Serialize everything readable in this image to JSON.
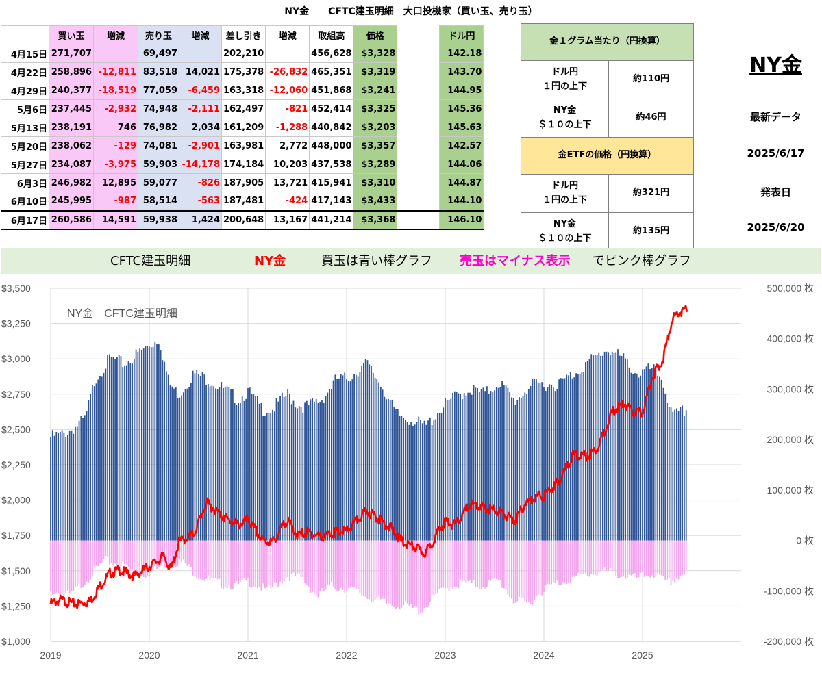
{
  "title": {
    "left": "NY金",
    "middle": "CFTC建玉明細",
    "right": "大口投機家（買い玉、売り玉）"
  },
  "table": {
    "headers": [
      "",
      "買い玉",
      "増減",
      "売り玉",
      "増減",
      "差し引き",
      "増減",
      "取組高",
      "価格",
      "",
      "ドル円"
    ],
    "rows": [
      [
        "4月15日",
        "271,707",
        "",
        "69,497",
        "",
        "202,210",
        "",
        "456,628",
        "$3,328",
        "",
        "142.18"
      ],
      [
        "4月22日",
        "258,896",
        "-12,811",
        "83,518",
        "14,021",
        "175,378",
        "-26,832",
        "465,351",
        "$3,319",
        "",
        "143.70"
      ],
      [
        "4月29日",
        "240,377",
        "-18,519",
        "77,059",
        "-6,459",
        "163,318",
        "-12,060",
        "451,868",
        "$3,241",
        "",
        "144.95"
      ],
      [
        "5月6日",
        "237,445",
        "-2,932",
        "74,948",
        "-2,111",
        "162,497",
        "-821",
        "452,414",
        "$3,325",
        "",
        "145.36"
      ],
      [
        "5月13日",
        "238,191",
        "746",
        "76,982",
        "2,034",
        "161,209",
        "-1,288",
        "440,842",
        "$3,203",
        "",
        "145.63"
      ],
      [
        "5月20日",
        "238,062",
        "-129",
        "74,081",
        "-2,901",
        "163,981",
        "2,772",
        "448,000",
        "$3,357",
        "",
        "142.57"
      ],
      [
        "5月27日",
        "234,087",
        "-3,975",
        "59,903",
        "-14,178",
        "174,184",
        "10,203",
        "437,538",
        "$3,289",
        "",
        "144.06"
      ],
      [
        "6月3日",
        "246,982",
        "12,895",
        "59,077",
        "-826",
        "187,905",
        "13,721",
        "415,941",
        "$3,310",
        "",
        "144.87"
      ],
      [
        "6月10日",
        "245,995",
        "-987",
        "58,514",
        "-563",
        "187,481",
        "-424",
        "417,143",
        "$3,433",
        "",
        "144.10"
      ],
      [
        "6月17日",
        "260,586",
        "14,591",
        "59,938",
        "1,424",
        "200,648",
        "13,167",
        "441,214",
        "$3,368",
        "",
        "146.10"
      ]
    ]
  },
  "info_box": {
    "gram_header": "金１グラム当たり（円換算）",
    "etf_header": "金ETFの価格（円換算）",
    "rows": [
      {
        "label": "ドル円\n１円の上下",
        "value": "約110円"
      },
      {
        "label": "NY金\n＄１０の上下",
        "value": "約46円"
      },
      {
        "label": "ドル円\n１円の上下",
        "value": "約321円"
      },
      {
        "label": "NY金\n＄１０の上下",
        "value": "約135円"
      }
    ]
  },
  "right_info": {
    "big_title": "NY金",
    "latest_label": "最新データ",
    "latest_date": "2025/6/17",
    "release_label": "発表日",
    "release_date": "2025/6/20"
  },
  "banner": {
    "part1": "CFTC建玉明細",
    "part2": "NY金",
    "part3": "買玉は青い棒グラフ",
    "part4": "売玉はマイナス表示",
    "part5": "でピンク棒グラフ"
  },
  "colors": {
    "long_bar": "#2f5597",
    "short_bar": "#f3a6ee",
    "price_line": "#ff0000",
    "grid": "#d9d9d9",
    "long_cell": "#f9c8f6",
    "short_cell": "#d9e1f2",
    "price_cell": "#a9d08e"
  },
  "chart_data": {
    "type": "bar+line",
    "title": "NY金　CFTC建玉明細",
    "x_ticks": [
      "2019",
      "2020",
      "2021",
      "2022",
      "2023",
      "2024",
      "2025"
    ],
    "x_range": [
      2019.0,
      2026.0
    ],
    "y_left": {
      "range": [
        1000,
        3500
      ],
      "ticks": [
        "$1,000",
        "$1,250",
        "$1,500",
        "$1,750",
        "$2,000",
        "$2,250",
        "$2,500",
        "$2,750",
        "$3,000",
        "$3,250",
        "$3,500"
      ]
    },
    "y_right": {
      "range": [
        -200000,
        500000
      ],
      "ticks": [
        "-200,000 枚",
        "-100,000 枚",
        "0 枚",
        "100,000 枚",
        "200,000 枚",
        "300,000 枚",
        "400,000 枚",
        "500,000 枚"
      ]
    },
    "long_anchors": [
      [
        2019.0,
        205000
      ],
      [
        2019.12,
        210000
      ],
      [
        2019.25,
        225000
      ],
      [
        2019.35,
        240000
      ],
      [
        2019.45,
        320000
      ],
      [
        2019.6,
        360000
      ],
      [
        2019.75,
        350000
      ],
      [
        2019.95,
        380000
      ],
      [
        2020.1,
        400000
      ],
      [
        2020.2,
        310000
      ],
      [
        2020.3,
        290000
      ],
      [
        2020.45,
        330000
      ],
      [
        2020.6,
        320000
      ],
      [
        2020.75,
        300000
      ],
      [
        2020.9,
        280000
      ],
      [
        2021.0,
        295000
      ],
      [
        2021.15,
        260000
      ],
      [
        2021.25,
        260000
      ],
      [
        2021.4,
        290000
      ],
      [
        2021.5,
        270000
      ],
      [
        2021.6,
        265000
      ],
      [
        2021.75,
        280000
      ],
      [
        2021.9,
        320000
      ],
      [
        2022.0,
        320000
      ],
      [
        2022.2,
        350000
      ],
      [
        2022.35,
        310000
      ],
      [
        2022.5,
        250000
      ],
      [
        2022.65,
        240000
      ],
      [
        2022.8,
        225000
      ],
      [
        2022.95,
        260000
      ],
      [
        2023.1,
        285000
      ],
      [
        2023.25,
        300000
      ],
      [
        2023.4,
        290000
      ],
      [
        2023.55,
        315000
      ],
      [
        2023.7,
        275000
      ],
      [
        2023.85,
        305000
      ],
      [
        2024.0,
        310000
      ],
      [
        2024.15,
        310000
      ],
      [
        2024.3,
        330000
      ],
      [
        2024.5,
        360000
      ],
      [
        2024.65,
        380000
      ],
      [
        2024.8,
        360000
      ],
      [
        2024.95,
        330000
      ],
      [
        2025.1,
        340000
      ],
      [
        2025.2,
        320000
      ],
      [
        2025.3,
        245000
      ],
      [
        2025.46,
        260586
      ]
    ],
    "short_anchors": [
      [
        2019.0,
        -100000
      ],
      [
        2019.2,
        -110000
      ],
      [
        2019.4,
        -70000
      ],
      [
        2019.55,
        -40000
      ],
      [
        2019.75,
        -50000
      ],
      [
        2019.9,
        -70000
      ],
      [
        2020.05,
        -60000
      ],
      [
        2020.2,
        -40000
      ],
      [
        2020.35,
        -45000
      ],
      [
        2020.5,
        -70000
      ],
      [
        2020.7,
        -85000
      ],
      [
        2020.9,
        -90000
      ],
      [
        2021.0,
        -80000
      ],
      [
        2021.2,
        -100000
      ],
      [
        2021.4,
        -70000
      ],
      [
        2021.55,
        -75000
      ],
      [
        2021.7,
        -110000
      ],
      [
        2021.85,
        -90000
      ],
      [
        2022.0,
        -95000
      ],
      [
        2022.2,
        -110000
      ],
      [
        2022.4,
        -125000
      ],
      [
        2022.6,
        -130000
      ],
      [
        2022.75,
        -140000
      ],
      [
        2022.9,
        -110000
      ],
      [
        2023.05,
        -90000
      ],
      [
        2023.2,
        -85000
      ],
      [
        2023.35,
        -90000
      ],
      [
        2023.55,
        -80000
      ],
      [
        2023.7,
        -120000
      ],
      [
        2023.85,
        -125000
      ],
      [
        2024.0,
        -95000
      ],
      [
        2024.2,
        -80000
      ],
      [
        2024.4,
        -70000
      ],
      [
        2024.6,
        -60000
      ],
      [
        2024.8,
        -70000
      ],
      [
        2024.95,
        -75000
      ],
      [
        2025.1,
        -65000
      ],
      [
        2025.25,
        -85000
      ],
      [
        2025.35,
        -75000
      ],
      [
        2025.46,
        -59938
      ]
    ],
    "price": [
      [
        2019.0,
        1285
      ],
      [
        2019.1,
        1310
      ],
      [
        2019.25,
        1280
      ],
      [
        2019.4,
        1300
      ],
      [
        2019.5,
        1410
      ],
      [
        2019.6,
        1500
      ],
      [
        2019.7,
        1520
      ],
      [
        2019.85,
        1480
      ],
      [
        2020.0,
        1550
      ],
      [
        2020.15,
        1620
      ],
      [
        2020.22,
        1520
      ],
      [
        2020.3,
        1720
      ],
      [
        2020.45,
        1780
      ],
      [
        2020.58,
        2000
      ],
      [
        2020.75,
        1900
      ],
      [
        2020.9,
        1840
      ],
      [
        2021.0,
        1880
      ],
      [
        2021.15,
        1730
      ],
      [
        2021.25,
        1720
      ],
      [
        2021.4,
        1880
      ],
      [
        2021.5,
        1770
      ],
      [
        2021.6,
        1790
      ],
      [
        2021.75,
        1760
      ],
      [
        2021.9,
        1790
      ],
      [
        2022.0,
        1800
      ],
      [
        2022.2,
        1940
      ],
      [
        2022.3,
        1900
      ],
      [
        2022.45,
        1820
      ],
      [
        2022.55,
        1730
      ],
      [
        2022.7,
        1680
      ],
      [
        2022.8,
        1640
      ],
      [
        2022.9,
        1760
      ],
      [
        2023.0,
        1870
      ],
      [
        2023.1,
        1840
      ],
      [
        2023.25,
        1990
      ],
      [
        2023.4,
        1960
      ],
      [
        2023.55,
        1940
      ],
      [
        2023.7,
        1870
      ],
      [
        2023.8,
        1980
      ],
      [
        2023.9,
        2040
      ],
      [
        2024.0,
        2050
      ],
      [
        2024.15,
        2150
      ],
      [
        2024.3,
        2340
      ],
      [
        2024.45,
        2330
      ],
      [
        2024.55,
        2400
      ],
      [
        2024.7,
        2650
      ],
      [
        2024.82,
        2700
      ],
      [
        2024.9,
        2640
      ],
      [
        2025.0,
        2640
      ],
      [
        2025.1,
        2900
      ],
      [
        2025.2,
        3000
      ],
      [
        2025.3,
        3300
      ],
      [
        2025.37,
        3350
      ],
      [
        2025.46,
        3368
      ]
    ]
  }
}
